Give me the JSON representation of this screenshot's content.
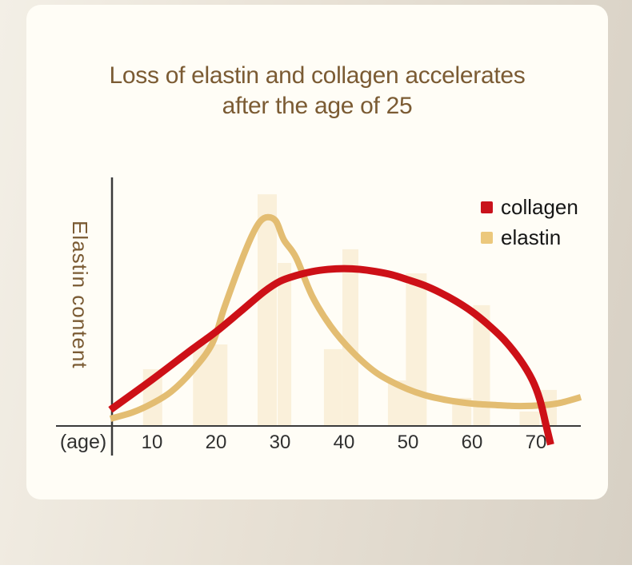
{
  "title": {
    "line1": "Loss of elastin and collagen accelerates",
    "line2": "after the age of 25",
    "color": "#7b5b33"
  },
  "legend": {
    "items": [
      {
        "label": "collagen",
        "color": "#c9121c"
      },
      {
        "label": "elastin",
        "color": "#ecc87c"
      }
    ]
  },
  "chart_data": {
    "type": "line",
    "title": "Loss of elastin and collagen accelerates after the age of 25",
    "xlabel": "(age)",
    "ylabel": "Elastin content",
    "x_ticks": [
      10,
      20,
      30,
      40,
      50,
      60,
      70
    ],
    "x_range": [
      3.5,
      77
    ],
    "y_range": [
      0,
      100
    ],
    "grid": false,
    "legend_position": "top-right",
    "axis_color": "#3a3a3a",
    "series": [
      {
        "name": "collagen",
        "color": "#cd1017",
        "stroke_width": 9,
        "points": [
          [
            3.5,
            6.5
          ],
          [
            10,
            18.6
          ],
          [
            16.3,
            30.9
          ],
          [
            20,
            37.9
          ],
          [
            23.8,
            46
          ],
          [
            27.5,
            54
          ],
          [
            30,
            58.2
          ],
          [
            32.5,
            60.5
          ],
          [
            35,
            62.1
          ],
          [
            37.5,
            63
          ],
          [
            40,
            63.3
          ],
          [
            42.5,
            63
          ],
          [
            45,
            62.1
          ],
          [
            47.5,
            60.8
          ],
          [
            50,
            58.8
          ],
          [
            52.5,
            56.6
          ],
          [
            55,
            53.7
          ],
          [
            57.5,
            50.2
          ],
          [
            60,
            46
          ],
          [
            62.5,
            40.8
          ],
          [
            65,
            34.7
          ],
          [
            67.5,
            26.7
          ],
          [
            69.4,
            18.6
          ],
          [
            70.6,
            10.6
          ],
          [
            71.6,
            0
          ],
          [
            72.3,
            -7.5
          ]
        ]
      },
      {
        "name": "elastin",
        "color": "#e3bd72",
        "stroke_width": 8,
        "points": [
          [
            3.5,
            2.9
          ],
          [
            7,
            5.5
          ],
          [
            10,
            9
          ],
          [
            13,
            13.8
          ],
          [
            16.3,
            22.2
          ],
          [
            19.4,
            33.1
          ],
          [
            21.3,
            47.6
          ],
          [
            23.8,
            65.3
          ],
          [
            25.6,
            76.5
          ],
          [
            26.9,
            82.3
          ],
          [
            28.1,
            84
          ],
          [
            29.4,
            82.3
          ],
          [
            30.6,
            74.9
          ],
          [
            32.5,
            67.8
          ],
          [
            35,
            52.4
          ],
          [
            37.9,
            40.2
          ],
          [
            41.3,
            29.9
          ],
          [
            45,
            21.5
          ],
          [
            48.8,
            16.1
          ],
          [
            52.5,
            12.5
          ],
          [
            56.3,
            10.3
          ],
          [
            60,
            9
          ],
          [
            63.8,
            8.4
          ],
          [
            67.5,
            8
          ],
          [
            71.3,
            8.4
          ],
          [
            73.8,
            9.3
          ],
          [
            77,
            11.6
          ]
        ]
      }
    ],
    "background_bars": {
      "color": "#faf0da",
      "bars": [
        {
          "age": 10.1,
          "w": 24,
          "h": 22.8
        },
        {
          "age": 19.1,
          "w": 43,
          "h": 32.8
        },
        {
          "age": 28.0,
          "w": 24,
          "h": 93.2
        },
        {
          "age": 30.7,
          "w": 17,
          "h": 65.6
        },
        {
          "age": 38.3,
          "w": 23,
          "h": 30.9
        },
        {
          "age": 41.0,
          "w": 20,
          "h": 71.1
        },
        {
          "age": 48.3,
          "w": 23,
          "h": 18.3
        },
        {
          "age": 51.3,
          "w": 26,
          "h": 61.4
        },
        {
          "age": 58.4,
          "w": 24,
          "h": 11.3
        },
        {
          "age": 61.5,
          "w": 21,
          "h": 48.6
        },
        {
          "age": 69.0,
          "w": 25,
          "h": 5.8
        },
        {
          "age": 72.0,
          "w": 20,
          "h": 14.5
        }
      ]
    }
  }
}
